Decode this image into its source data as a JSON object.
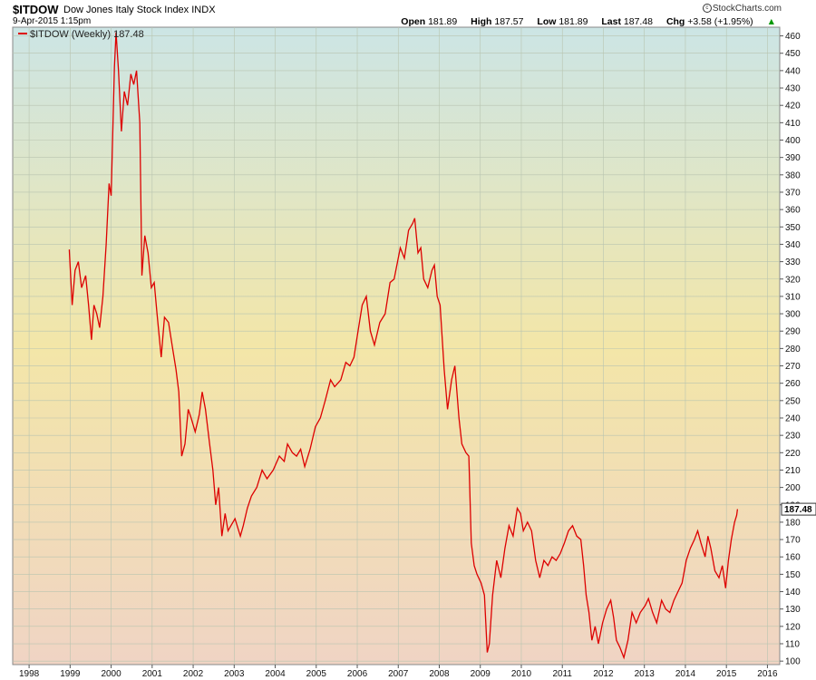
{
  "header": {
    "symbol": "$ITDOW",
    "name": "Dow Jones Italy Stock Index",
    "exchange": "INDX",
    "datetime": "9-Apr-2015 1:15pm",
    "brand": "StockCharts.com",
    "quote": [
      {
        "label": "Open",
        "value": "181.89"
      },
      {
        "label": "High",
        "value": "187.57"
      },
      {
        "label": "Low",
        "value": "181.89"
      },
      {
        "label": "Last",
        "value": "187.48"
      },
      {
        "label": "Chg",
        "value": "+3.58 (+1.95%)"
      }
    ]
  },
  "colors": {
    "line": "#dd0000",
    "bg_top": "#cce5e5",
    "bg_mid": "#f3e6a8",
    "bg_bottom": "#f0d4c4",
    "grid": "#b8c4b0"
  },
  "chart_data": {
    "type": "line",
    "legend": "$ITDOW (Weekly) 187.48",
    "last_value": "187.48",
    "xlim": [
      1997.6,
      2016.3
    ],
    "ylim": [
      98,
      465
    ],
    "x_ticks": [
      "1998",
      "1999",
      "2000",
      "2001",
      "2002",
      "2003",
      "2004",
      "2005",
      "2006",
      "2007",
      "2008",
      "2009",
      "2010",
      "2011",
      "2012",
      "2013",
      "2014",
      "2015",
      "2016"
    ],
    "y_ticks": [
      100,
      110,
      120,
      130,
      140,
      150,
      160,
      170,
      180,
      190,
      200,
      210,
      220,
      230,
      240,
      250,
      260,
      270,
      280,
      290,
      300,
      310,
      320,
      330,
      340,
      350,
      360,
      370,
      380,
      390,
      400,
      410,
      420,
      430,
      440,
      450,
      460
    ],
    "series": [
      {
        "points": [
          [
            1998.98,
            337
          ],
          [
            1999.05,
            305
          ],
          [
            1999.12,
            325
          ],
          [
            1999.2,
            330
          ],
          [
            1999.28,
            315
          ],
          [
            1999.38,
            322
          ],
          [
            1999.45,
            305
          ],
          [
            1999.52,
            285
          ],
          [
            1999.58,
            305
          ],
          [
            1999.65,
            300
          ],
          [
            1999.72,
            292
          ],
          [
            1999.8,
            310
          ],
          [
            1999.88,
            340
          ],
          [
            1999.95,
            375
          ],
          [
            2000.0,
            368
          ],
          [
            2000.08,
            442
          ],
          [
            2000.12,
            462
          ],
          [
            2000.18,
            440
          ],
          [
            2000.25,
            405
          ],
          [
            2000.32,
            428
          ],
          [
            2000.4,
            420
          ],
          [
            2000.48,
            438
          ],
          [
            2000.55,
            432
          ],
          [
            2000.62,
            440
          ],
          [
            2000.7,
            410
          ],
          [
            2000.75,
            322
          ],
          [
            2000.82,
            345
          ],
          [
            2000.9,
            335
          ],
          [
            2000.98,
            315
          ],
          [
            2001.05,
            318
          ],
          [
            2001.12,
            300
          ],
          [
            2001.22,
            275
          ],
          [
            2001.3,
            298
          ],
          [
            2001.4,
            295
          ],
          [
            2001.5,
            280
          ],
          [
            2001.58,
            268
          ],
          [
            2001.65,
            255
          ],
          [
            2001.72,
            218
          ],
          [
            2001.8,
            225
          ],
          [
            2001.88,
            245
          ],
          [
            2001.95,
            240
          ],
          [
            2002.05,
            232
          ],
          [
            2002.15,
            242
          ],
          [
            2002.22,
            255
          ],
          [
            2002.3,
            245
          ],
          [
            2002.4,
            225
          ],
          [
            2002.48,
            210
          ],
          [
            2002.55,
            190
          ],
          [
            2002.62,
            200
          ],
          [
            2002.7,
            172
          ],
          [
            2002.78,
            185
          ],
          [
            2002.85,
            175
          ],
          [
            2002.92,
            178
          ],
          [
            2003.02,
            182
          ],
          [
            2003.15,
            172
          ],
          [
            2003.22,
            178
          ],
          [
            2003.32,
            188
          ],
          [
            2003.42,
            195
          ],
          [
            2003.55,
            200
          ],
          [
            2003.68,
            210
          ],
          [
            2003.8,
            205
          ],
          [
            2003.95,
            210
          ],
          [
            2004.1,
            218
          ],
          [
            2004.22,
            215
          ],
          [
            2004.3,
            225
          ],
          [
            2004.42,
            220
          ],
          [
            2004.52,
            218
          ],
          [
            2004.62,
            222
          ],
          [
            2004.72,
            212
          ],
          [
            2004.85,
            222
          ],
          [
            2004.98,
            235
          ],
          [
            2005.1,
            240
          ],
          [
            2005.22,
            250
          ],
          [
            2005.35,
            262
          ],
          [
            2005.45,
            258
          ],
          [
            2005.6,
            262
          ],
          [
            2005.72,
            272
          ],
          [
            2005.82,
            270
          ],
          [
            2005.92,
            275
          ],
          [
            2006.02,
            290
          ],
          [
            2006.12,
            305
          ],
          [
            2006.22,
            310
          ],
          [
            2006.32,
            290
          ],
          [
            2006.42,
            282
          ],
          [
            2006.55,
            295
          ],
          [
            2006.68,
            300
          ],
          [
            2006.8,
            318
          ],
          [
            2006.9,
            320
          ],
          [
            2007.05,
            338
          ],
          [
            2007.15,
            332
          ],
          [
            2007.25,
            348
          ],
          [
            2007.35,
            352
          ],
          [
            2007.4,
            355
          ],
          [
            2007.48,
            335
          ],
          [
            2007.55,
            338
          ],
          [
            2007.62,
            320
          ],
          [
            2007.72,
            315
          ],
          [
            2007.82,
            325
          ],
          [
            2007.88,
            328
          ],
          [
            2007.95,
            310
          ],
          [
            2008.02,
            305
          ],
          [
            2008.12,
            268
          ],
          [
            2008.2,
            245
          ],
          [
            2008.3,
            262
          ],
          [
            2008.38,
            270
          ],
          [
            2008.48,
            240
          ],
          [
            2008.55,
            225
          ],
          [
            2008.65,
            220
          ],
          [
            2008.72,
            218
          ],
          [
            2008.78,
            168
          ],
          [
            2008.85,
            155
          ],
          [
            2008.92,
            150
          ],
          [
            2009.02,
            145
          ],
          [
            2009.1,
            138
          ],
          [
            2009.17,
            105
          ],
          [
            2009.22,
            110
          ],
          [
            2009.3,
            138
          ],
          [
            2009.4,
            158
          ],
          [
            2009.5,
            148
          ],
          [
            2009.6,
            165
          ],
          [
            2009.7,
            178
          ],
          [
            2009.8,
            172
          ],
          [
            2009.9,
            188
          ],
          [
            2009.98,
            185
          ],
          [
            2010.05,
            175
          ],
          [
            2010.15,
            180
          ],
          [
            2010.25,
            175
          ],
          [
            2010.35,
            158
          ],
          [
            2010.45,
            148
          ],
          [
            2010.55,
            158
          ],
          [
            2010.65,
            155
          ],
          [
            2010.75,
            160
          ],
          [
            2010.85,
            158
          ],
          [
            2010.95,
            162
          ],
          [
            2011.05,
            168
          ],
          [
            2011.15,
            175
          ],
          [
            2011.25,
            178
          ],
          [
            2011.35,
            172
          ],
          [
            2011.45,
            170
          ],
          [
            2011.52,
            155
          ],
          [
            2011.58,
            138
          ],
          [
            2011.65,
            128
          ],
          [
            2011.72,
            112
          ],
          [
            2011.8,
            120
          ],
          [
            2011.88,
            110
          ],
          [
            2011.98,
            122
          ],
          [
            2012.08,
            130
          ],
          [
            2012.18,
            135
          ],
          [
            2012.25,
            125
          ],
          [
            2012.32,
            112
          ],
          [
            2012.4,
            108
          ],
          [
            2012.5,
            102
          ],
          [
            2012.6,
            112
          ],
          [
            2012.7,
            128
          ],
          [
            2012.8,
            122
          ],
          [
            2012.9,
            128
          ],
          [
            2013.02,
            132
          ],
          [
            2013.1,
            136
          ],
          [
            2013.2,
            128
          ],
          [
            2013.3,
            122
          ],
          [
            2013.42,
            135
          ],
          [
            2013.52,
            130
          ],
          [
            2013.62,
            128
          ],
          [
            2013.72,
            135
          ],
          [
            2013.82,
            140
          ],
          [
            2013.92,
            145
          ],
          [
            2014.02,
            158
          ],
          [
            2014.12,
            165
          ],
          [
            2014.22,
            170
          ],
          [
            2014.3,
            175
          ],
          [
            2014.38,
            168
          ],
          [
            2014.48,
            160
          ],
          [
            2014.55,
            172
          ],
          [
            2014.62,
            165
          ],
          [
            2014.72,
            152
          ],
          [
            2014.82,
            148
          ],
          [
            2014.9,
            155
          ],
          [
            2014.98,
            142
          ],
          [
            2015.05,
            158
          ],
          [
            2015.12,
            170
          ],
          [
            2015.2,
            180
          ],
          [
            2015.25,
            184
          ],
          [
            2015.27,
            187.48
          ]
        ]
      }
    ]
  }
}
